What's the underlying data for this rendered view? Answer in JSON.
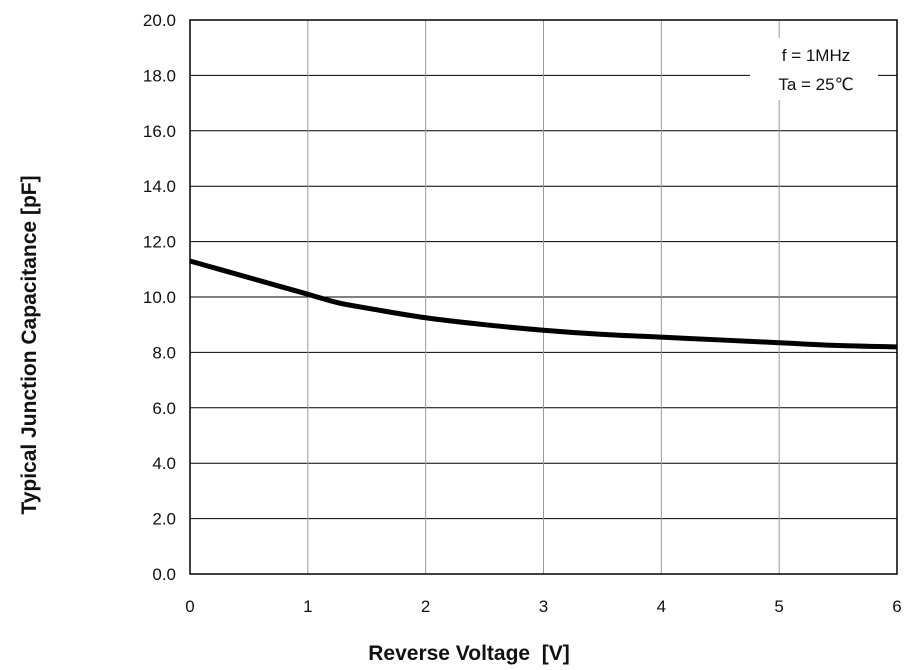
{
  "chart_data": {
    "type": "line",
    "title": "",
    "xlabel": "Reverse Voltage  [V]",
    "ylabel": "Typical Junction Capacitance [pF]",
    "xlim": [
      0,
      6
    ],
    "ylim": [
      0,
      20
    ],
    "x_ticks": [
      "0",
      "1",
      "2",
      "3",
      "4",
      "5",
      "6"
    ],
    "y_ticks": [
      "0.0",
      "2.0",
      "4.0",
      "6.0",
      "8.0",
      "10.0",
      "12.0",
      "14.0",
      "16.0",
      "18.0",
      "20.0"
    ],
    "grid": true,
    "annotations": [
      "f = 1MHz",
      "Ta = 25℃"
    ],
    "series": [
      {
        "color": "#000000",
        "x": [
          0,
          0.25,
          0.5,
          0.75,
          1.0,
          1.25,
          1.5,
          2.0,
          2.5,
          3.0,
          3.5,
          4.0,
          4.5,
          5.0,
          5.5,
          6.0
        ],
        "y": [
          11.3,
          11.0,
          10.7,
          10.4,
          10.1,
          9.8,
          9.6,
          9.25,
          9.0,
          8.8,
          8.65,
          8.55,
          8.45,
          8.35,
          8.25,
          8.2
        ]
      }
    ]
  }
}
